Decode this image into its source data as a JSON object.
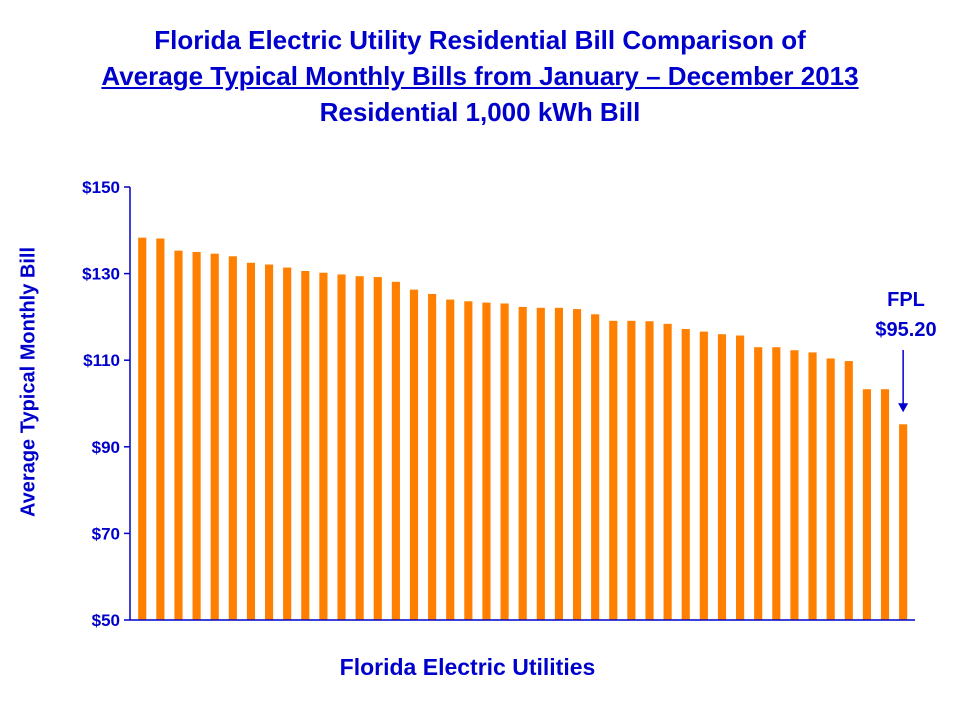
{
  "title_lines": [
    "Florida Electric Utility Residential Bill Comparison of",
    "Average Typical Monthly Bills from January – December 2013",
    "Residential 1,000 kWh Bill"
  ],
  "colors": {
    "bar": "#ff8000",
    "text": "#0000cc",
    "axis": "#0000cc"
  },
  "chart_data": {
    "type": "bar",
    "xlabel": "Florida Electric Utilities",
    "ylabel": "Average Typical Monthly Bill",
    "ylim": [
      50,
      150
    ],
    "y_ticks": [
      50,
      70,
      90,
      110,
      130,
      150
    ],
    "y_tick_labels": [
      "$50",
      "$70",
      "$90",
      "$110",
      "$130",
      "$150"
    ],
    "grid": false,
    "legend": "none",
    "values": [
      138.3,
      138.1,
      135.3,
      135.0,
      134.6,
      134.0,
      132.5,
      132.1,
      131.4,
      130.6,
      130.2,
      129.8,
      129.4,
      129.2,
      128.1,
      126.3,
      125.3,
      124.0,
      123.6,
      123.3,
      123.1,
      122.3,
      122.1,
      122.1,
      121.8,
      120.6,
      119.1,
      119.1,
      119.0,
      118.4,
      117.2,
      116.6,
      116.0,
      115.7,
      113.0,
      113.0,
      112.3,
      111.8,
      110.4,
      109.8,
      103.3,
      103.3,
      95.2
    ],
    "annotation": {
      "label": "FPL",
      "value_text": "$95.20"
    }
  }
}
